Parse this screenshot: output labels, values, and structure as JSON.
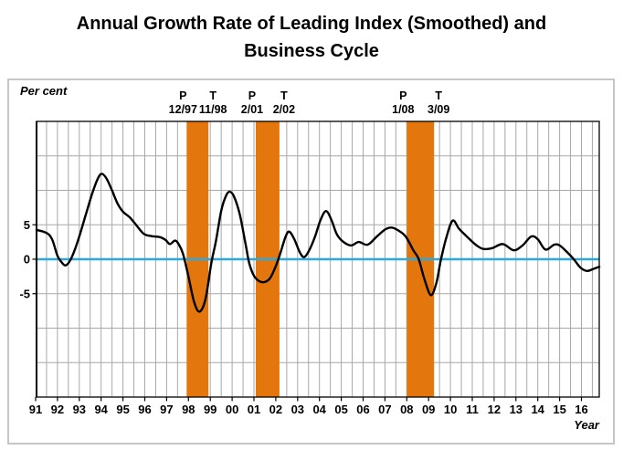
{
  "title": {
    "line1": "Annual Growth Rate of Leading Index (Smoothed) and",
    "line2": "Business Cycle"
  },
  "axis_titles": {
    "y": "Per cent",
    "x": "Year"
  },
  "colors": {
    "band": "#e4760e",
    "zero_line": "#29a9df",
    "curve": "#000000",
    "grid": "#a8a8a8",
    "plot_border": "#000000",
    "frame_border": "#c6c6c6"
  },
  "chart_data": {
    "type": "line",
    "title": "Annual Growth Rate of Leading Index (Smoothed) and Business Cycle",
    "ylabel": "Per cent",
    "xlabel": "Year",
    "ylim": [
      -20,
      20
    ],
    "y_gridline_step": 5,
    "x_gridline_step_years": 0.5,
    "grid": true,
    "legend": "none",
    "zero_line_value": 0,
    "y_tick_labels": [
      "5",
      "0",
      "-5"
    ],
    "y_tick_values": [
      5,
      0,
      -5
    ],
    "x_tick_labels": [
      "91",
      "92",
      "93",
      "94",
      "95",
      "96",
      "97",
      "98",
      "99",
      "00",
      "01",
      "02",
      "03",
      "04",
      "05",
      "06",
      "07",
      "08",
      "09",
      "10",
      "11",
      "12",
      "13",
      "14",
      "15",
      "16"
    ],
    "x_tick_start_year": 1991,
    "recession_bands": [
      {
        "peak_label": "P",
        "peak_date": "12/97",
        "trough_label": "T",
        "trough_date": "11/98",
        "start": 1997.917,
        "end": 1998.917
      },
      {
        "peak_label": "P",
        "peak_date": "2/01",
        "trough_label": "T",
        "trough_date": "2/02",
        "start": 2001.083,
        "end": 2002.167
      },
      {
        "peak_label": "P",
        "peak_date": "1/08",
        "trough_label": "T",
        "trough_date": "3/09",
        "start": 2008.0,
        "end": 2009.25
      }
    ],
    "series": [
      {
        "name": "Annual growth rate of leading index (smoothed)",
        "points": [
          [
            1991.04,
            4.25
          ],
          [
            1991.35,
            4.0
          ],
          [
            1991.6,
            3.6
          ],
          [
            1991.78,
            2.7
          ],
          [
            1992.0,
            0.5
          ],
          [
            1992.18,
            -0.4
          ],
          [
            1992.36,
            -0.9
          ],
          [
            1992.55,
            -0.35
          ],
          [
            1992.75,
            1.0
          ],
          [
            1993.0,
            3.3
          ],
          [
            1993.3,
            6.5
          ],
          [
            1993.6,
            9.6
          ],
          [
            1993.85,
            11.7
          ],
          [
            1994.03,
            12.4
          ],
          [
            1994.25,
            11.7
          ],
          [
            1994.5,
            10.0
          ],
          [
            1994.75,
            8.1
          ],
          [
            1995.0,
            6.9
          ],
          [
            1995.3,
            6.1
          ],
          [
            1995.6,
            5.0
          ],
          [
            1995.95,
            3.7
          ],
          [
            1996.3,
            3.35
          ],
          [
            1996.7,
            3.2
          ],
          [
            1996.95,
            2.8
          ],
          [
            1997.15,
            2.2
          ],
          [
            1997.38,
            2.7
          ],
          [
            1997.55,
            2.2
          ],
          [
            1997.75,
            0.8
          ],
          [
            1998.0,
            -2.5
          ],
          [
            1998.25,
            -6.1
          ],
          [
            1998.5,
            -7.6
          ],
          [
            1998.78,
            -5.8
          ],
          [
            1999.05,
            -0.5
          ],
          [
            1999.25,
            2.5
          ],
          [
            1999.5,
            7.0
          ],
          [
            1999.72,
            9.2
          ],
          [
            1999.9,
            9.8
          ],
          [
            2000.1,
            9.0
          ],
          [
            2000.35,
            6.5
          ],
          [
            2000.6,
            2.5
          ],
          [
            2000.78,
            -0.5
          ],
          [
            2001.0,
            -2.4
          ],
          [
            2001.25,
            -3.2
          ],
          [
            2001.5,
            -3.3
          ],
          [
            2001.75,
            -2.7
          ],
          [
            2002.0,
            -1.0
          ],
          [
            2002.2,
            0.8
          ],
          [
            2002.45,
            3.3
          ],
          [
            2002.62,
            4.0
          ],
          [
            2002.85,
            2.9
          ],
          [
            2003.1,
            1.0
          ],
          [
            2003.3,
            0.3
          ],
          [
            2003.55,
            1.4
          ],
          [
            2003.8,
            3.3
          ],
          [
            2004.05,
            5.7
          ],
          [
            2004.3,
            7.0
          ],
          [
            2004.55,
            5.7
          ],
          [
            2004.8,
            3.6
          ],
          [
            2005.1,
            2.5
          ],
          [
            2005.45,
            2.0
          ],
          [
            2005.8,
            2.5
          ],
          [
            2006.2,
            2.1
          ],
          [
            2006.6,
            3.2
          ],
          [
            2007.0,
            4.3
          ],
          [
            2007.3,
            4.6
          ],
          [
            2007.6,
            4.2
          ],
          [
            2007.95,
            3.3
          ],
          [
            2008.3,
            1.3
          ],
          [
            2008.55,
            0.0
          ],
          [
            2008.8,
            -2.8
          ],
          [
            2009.1,
            -5.2
          ],
          [
            2009.35,
            -3.5
          ],
          [
            2009.55,
            -0.3
          ],
          [
            2009.8,
            3.0
          ],
          [
            2010.1,
            5.6
          ],
          [
            2010.4,
            4.4
          ],
          [
            2010.85,
            3.0
          ],
          [
            2011.2,
            2.0
          ],
          [
            2011.5,
            1.5
          ],
          [
            2011.9,
            1.6
          ],
          [
            2012.4,
            2.2
          ],
          [
            2012.9,
            1.3
          ],
          [
            2013.3,
            2.0
          ],
          [
            2013.7,
            3.3
          ],
          [
            2014.0,
            2.9
          ],
          [
            2014.35,
            1.4
          ],
          [
            2014.75,
            2.1
          ],
          [
            2015.0,
            2.0
          ],
          [
            2015.35,
            1.0
          ],
          [
            2015.65,
            0.0
          ],
          [
            2015.95,
            -1.2
          ],
          [
            2016.25,
            -1.7
          ],
          [
            2016.55,
            -1.4
          ],
          [
            2016.82,
            -1.1
          ]
        ]
      }
    ]
  }
}
